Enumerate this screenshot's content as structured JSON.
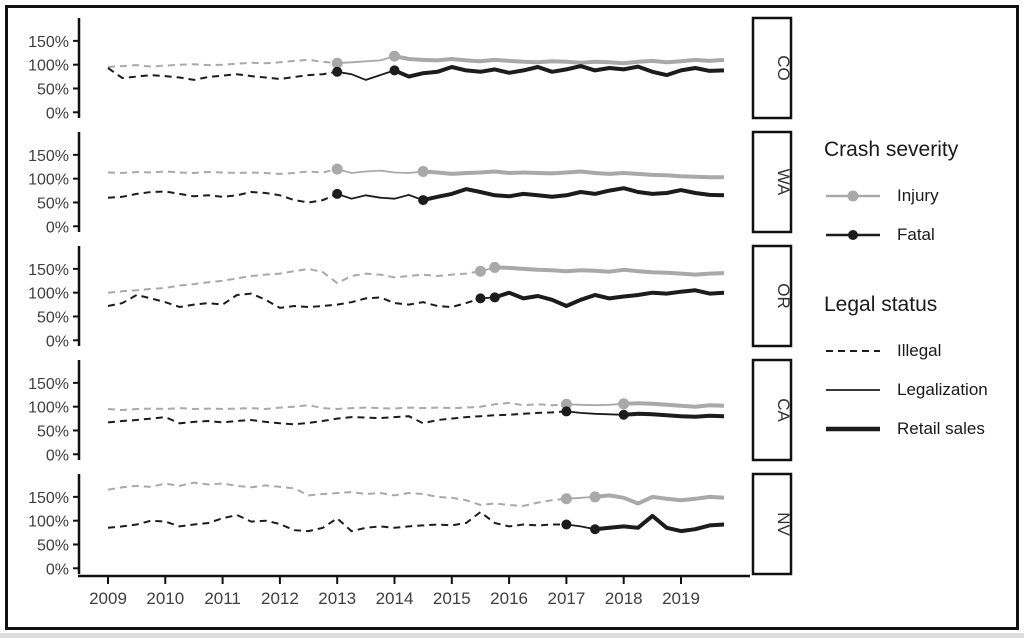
{
  "chart_data": {
    "type": "line",
    "title": "",
    "xlabel": "",
    "ylabel": "",
    "facet_labels": [
      "CO",
      "WA",
      "OR",
      "CA",
      "NV"
    ],
    "x_start": 2009,
    "x_step": 0.25,
    "x_ticks": [
      2009,
      2010,
      2011,
      2012,
      2013,
      2014,
      2015,
      2016,
      2017,
      2018,
      2019
    ],
    "x_tick_labels": [
      "2009",
      "2010",
      "2011",
      "2012",
      "2013",
      "2014",
      "2015",
      "2016",
      "2017",
      "2018",
      "2019"
    ],
    "y_ticks": [
      0,
      50,
      100,
      150
    ],
    "y_tick_labels": [
      "0%",
      "50%",
      "100%",
      "150%"
    ],
    "ylim": [
      -12,
      198
    ],
    "legend": {
      "severity_title": "Crash severity",
      "severity_items": [
        {
          "key": "injury",
          "label": "Injury"
        },
        {
          "key": "fatal",
          "label": "Fatal"
        }
      ],
      "status_title": "Legal status",
      "status_items": [
        {
          "key": "illegal",
          "label": "Illegal"
        },
        {
          "key": "legalization",
          "label": "Legalization"
        },
        {
          "key": "retail",
          "label": "Retail sales"
        }
      ]
    },
    "colors": {
      "injury": "#a9a9a9",
      "fatal": "#1c1c1c",
      "axis_text": "#3f3f3f",
      "frame": "#111111"
    },
    "panels": [
      {
        "state": "CO",
        "legalization_x": 2013.0,
        "retail_x": 2014.0,
        "series": {
          "injury": [
            95,
            97,
            99,
            96,
            98,
            100,
            101,
            99,
            100,
            102,
            104,
            103,
            105,
            108,
            110,
            106,
            103,
            105,
            107,
            109,
            118,
            112,
            110,
            109,
            112,
            109,
            107,
            110,
            108,
            106,
            105,
            107,
            106,
            104,
            106,
            105,
            103,
            106,
            108,
            105,
            107,
            110,
            108,
            110
          ],
          "fatal": [
            93,
            72,
            75,
            78,
            76,
            73,
            68,
            74,
            77,
            80,
            76,
            73,
            70,
            74,
            78,
            80,
            85,
            80,
            68,
            78,
            88,
            75,
            82,
            85,
            95,
            88,
            85,
            90,
            83,
            88,
            95,
            85,
            90,
            97,
            88,
            93,
            90,
            96,
            85,
            78,
            88,
            93,
            87,
            88
          ]
        }
      },
      {
        "state": "WA",
        "legalization_x": 2013.0,
        "retail_x": 2014.5,
        "series": {
          "injury": [
            113,
            112,
            114,
            113,
            115,
            113,
            112,
            114,
            113,
            112,
            113,
            112,
            110,
            112,
            115,
            113,
            120,
            112,
            115,
            117,
            113,
            112,
            115,
            113,
            110,
            112,
            113,
            115,
            112,
            113,
            112,
            111,
            113,
            115,
            112,
            110,
            112,
            110,
            108,
            107,
            105,
            104,
            103,
            103
          ],
          "fatal": [
            60,
            62,
            68,
            72,
            73,
            68,
            63,
            65,
            62,
            65,
            72,
            70,
            65,
            55,
            50,
            55,
            68,
            58,
            65,
            60,
            58,
            66,
            55,
            62,
            68,
            78,
            72,
            65,
            63,
            68,
            65,
            62,
            65,
            72,
            68,
            75,
            80,
            72,
            68,
            70,
            76,
            70,
            66,
            65
          ]
        }
      },
      {
        "state": "OR",
        "legalization_x": 2015.5,
        "retail_x": 2015.75,
        "series": {
          "injury": [
            100,
            103,
            105,
            108,
            110,
            115,
            118,
            122,
            125,
            130,
            135,
            138,
            140,
            145,
            150,
            143,
            120,
            135,
            140,
            138,
            132,
            135,
            138,
            135,
            138,
            140,
            145,
            153,
            152,
            150,
            148,
            147,
            145,
            147,
            146,
            144,
            148,
            145,
            143,
            142,
            140,
            138,
            140,
            141
          ],
          "fatal": [
            72,
            78,
            95,
            88,
            80,
            70,
            75,
            78,
            75,
            95,
            98,
            85,
            68,
            72,
            70,
            72,
            75,
            80,
            88,
            90,
            78,
            75,
            80,
            72,
            70,
            78,
            88,
            90,
            100,
            88,
            93,
            85,
            72,
            85,
            95,
            88,
            92,
            95,
            100,
            98,
            102,
            105,
            98,
            100
          ]
        }
      },
      {
        "state": "CA",
        "legalization_x": 2017.0,
        "retail_x": 2018.0,
        "series": {
          "injury": [
            95,
            93,
            95,
            96,
            95,
            97,
            95,
            96,
            95,
            96,
            97,
            95,
            98,
            100,
            103,
            97,
            95,
            97,
            98,
            97,
            96,
            98,
            97,
            98,
            97,
            98,
            100,
            105,
            108,
            103,
            105,
            103,
            105,
            104,
            103,
            104,
            106,
            107,
            106,
            104,
            102,
            100,
            103,
            102
          ],
          "fatal": [
            67,
            70,
            72,
            75,
            78,
            65,
            68,
            70,
            67,
            70,
            72,
            68,
            65,
            63,
            66,
            70,
            75,
            78,
            77,
            76,
            78,
            80,
            65,
            72,
            75,
            78,
            80,
            82,
            83,
            85,
            87,
            88,
            90,
            87,
            85,
            84,
            83,
            85,
            84,
            82,
            80,
            79,
            81,
            80
          ]
        }
      },
      {
        "state": "NV",
        "legalization_x": 2017.0,
        "retail_x": 2017.5,
        "series": {
          "injury": [
            165,
            170,
            173,
            171,
            178,
            173,
            180,
            176,
            178,
            173,
            170,
            174,
            171,
            168,
            153,
            156,
            158,
            160,
            156,
            158,
            153,
            158,
            156,
            150,
            148,
            143,
            133,
            136,
            133,
            131,
            138,
            143,
            146,
            148,
            150,
            153,
            148,
            136,
            150,
            146,
            143,
            146,
            150,
            148
          ],
          "fatal": [
            85,
            88,
            92,
            100,
            98,
            88,
            92,
            95,
            105,
            112,
            98,
            100,
            93,
            80,
            78,
            85,
            105,
            78,
            85,
            88,
            85,
            88,
            90,
            92,
            90,
            95,
            118,
            95,
            88,
            92,
            90,
            92,
            92,
            88,
            82,
            85,
            88,
            85,
            110,
            85,
            78,
            82,
            90,
            92
          ]
        }
      }
    ]
  }
}
